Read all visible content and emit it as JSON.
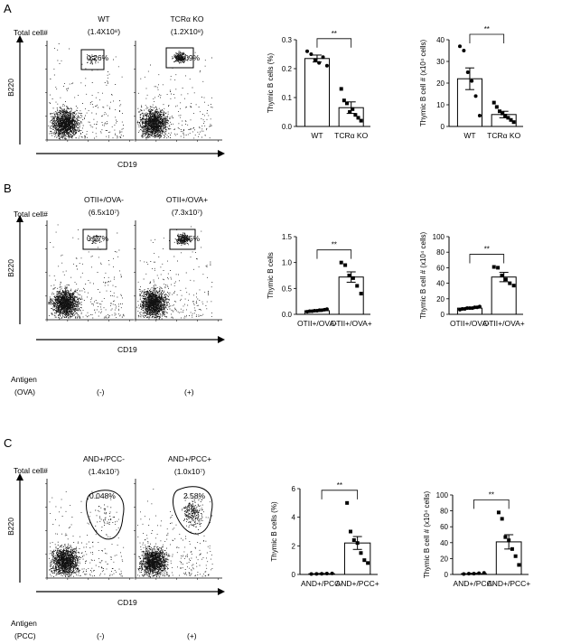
{
  "panels": [
    {
      "id": "A",
      "total_cell_label": "Total cell#",
      "antigen_label": "",
      "antigen_sub": "",
      "flow": {
        "xlabel": "CD19",
        "ylabel": "B220",
        "plots": [
          {
            "title": "WT",
            "count": "(1.4X10⁸)",
            "gate_pct": "0.26%",
            "antigen_state": ""
          },
          {
            "title": "TCRα KO",
            "count": "(1.2X10⁸)",
            "gate_pct": "0.09%",
            "antigen_state": ""
          }
        ]
      }
    },
    {
      "id": "B",
      "total_cell_label": "Total cell#",
      "antigen_label": "Antigen",
      "antigen_sub": "(OVA)",
      "flow": {
        "xlabel": "CD19",
        "ylabel": "B220",
        "plots": [
          {
            "title": "OTII+/OVA-",
            "count": "(6.5x10⁷)",
            "gate_pct": "0.07%",
            "antigen_state": "(-)"
          },
          {
            "title": "OTII+/OVA+",
            "count": "(7.3x10⁷)",
            "gate_pct": "0.65%",
            "antigen_state": "(+)"
          }
        ]
      }
    },
    {
      "id": "C",
      "total_cell_label": "Total cell#",
      "antigen_label": "Antigen",
      "antigen_sub": "(PCC)",
      "flow": {
        "xlabel": "CD19",
        "ylabel": "B220",
        "plots": [
          {
            "title": "AND+/PCC-",
            "count": "(1.4x10⁷)",
            "gate_pct": "0.048%",
            "antigen_state": "(-)"
          },
          {
            "title": "AND+/PCC+",
            "count": "(1.0x10⁷)",
            "gate_pct": "2.58%",
            "antigen_state": "(+)"
          }
        ]
      }
    }
  ],
  "chart_data": [
    {
      "type": "bar",
      "panel": "A",
      "categories": [
        "WT",
        "TCRα KO"
      ],
      "values": [
        0.235,
        0.065
      ],
      "errors": [
        0.012,
        0.02
      ],
      "points": [
        [
          0.26,
          0.25,
          0.23,
          0.22,
          0.24,
          0.21
        ],
        [
          0.13,
          0.09,
          0.08,
          0.05,
          0.06,
          0.04,
          0.03,
          0.02
        ]
      ],
      "ylabel": "Thymic B cells (%)",
      "ylim": [
        0,
        0.3
      ],
      "yticks": [
        "0.0",
        "0.1",
        "0.2",
        "0.3"
      ],
      "sig": "**"
    },
    {
      "type": "bar",
      "panel": "A",
      "categories": [
        "WT",
        "TCRα KO"
      ],
      "values": [
        22,
        5.5
      ],
      "errors": [
        5,
        1.5
      ],
      "points": [
        [
          37,
          35,
          25,
          21,
          14,
          5
        ],
        [
          11,
          9,
          7,
          6,
          5,
          4,
          3,
          2
        ]
      ],
      "ylabel": "Thymic B cell # (x10⁴ cells)",
      "ylim": [
        0,
        40
      ],
      "yticks": [
        "0",
        "10",
        "20",
        "30",
        "40"
      ],
      "sig": "**"
    },
    {
      "type": "bar",
      "panel": "B",
      "categories": [
        "OTII+/OVA-",
        "OTII+/OVA+"
      ],
      "values": [
        0.07,
        0.72
      ],
      "errors": [
        0.015,
        0.1
      ],
      "points": [
        [
          0.05,
          0.06,
          0.06,
          0.07,
          0.07,
          0.08,
          0.08,
          0.09,
          0.1
        ],
        [
          1.0,
          0.95,
          0.75,
          0.7,
          0.55,
          0.4
        ]
      ],
      "ylabel": "Thymic B cells",
      "ylim": [
        0,
        1.5
      ],
      "yticks": [
        "0.0",
        "0.5",
        "1.0",
        "1.5"
      ],
      "sig": "**"
    },
    {
      "type": "bar",
      "panel": "B",
      "categories": [
        "OTII+/OVA-",
        "OTII+/OVA+"
      ],
      "values": [
        8,
        48
      ],
      "errors": [
        1,
        6
      ],
      "points": [
        [
          6,
          7,
          7,
          8,
          8,
          8,
          9,
          9,
          10
        ],
        [
          61,
          60,
          50,
          45,
          40,
          37
        ]
      ],
      "ylabel": "Thymic B cell # (x10⁴ cells)",
      "ylim": [
        0,
        100
      ],
      "yticks": [
        "0",
        "20",
        "40",
        "60",
        "80",
        "100"
      ],
      "sig": "**"
    },
    {
      "type": "bar",
      "panel": "C",
      "categories": [
        "AND+/PCC-",
        "AND+/PCC+"
      ],
      "values": [
        0.05,
        2.2
      ],
      "errors": [
        0.02,
        0.45
      ],
      "points": [
        [
          0.03,
          0.04,
          0.05,
          0.06,
          0.07
        ],
        [
          5.0,
          3.0,
          2.4,
          2.2,
          1.5,
          1.0,
          0.8
        ]
      ],
      "ylabel": "Thymic B cells (%)",
      "ylim": [
        0,
        6
      ],
      "yticks": [
        "0",
        "2",
        "4",
        "6"
      ],
      "sig": "**"
    },
    {
      "type": "bar",
      "panel": "C",
      "categories": [
        "AND+/PCC-",
        "AND+/PCC+"
      ],
      "values": [
        1,
        41
      ],
      "errors": [
        0.5,
        9
      ],
      "points": [
        [
          0.5,
          1,
          1,
          1.5,
          2
        ],
        [
          78,
          70,
          47,
          43,
          32,
          23,
          12
        ]
      ],
      "ylabel": "Thymic B cell # (x10⁴ cells)",
      "ylim": [
        0,
        100
      ],
      "yticks": [
        "0",
        "20",
        "40",
        "60",
        "80",
        "100"
      ],
      "sig": "**"
    }
  ]
}
